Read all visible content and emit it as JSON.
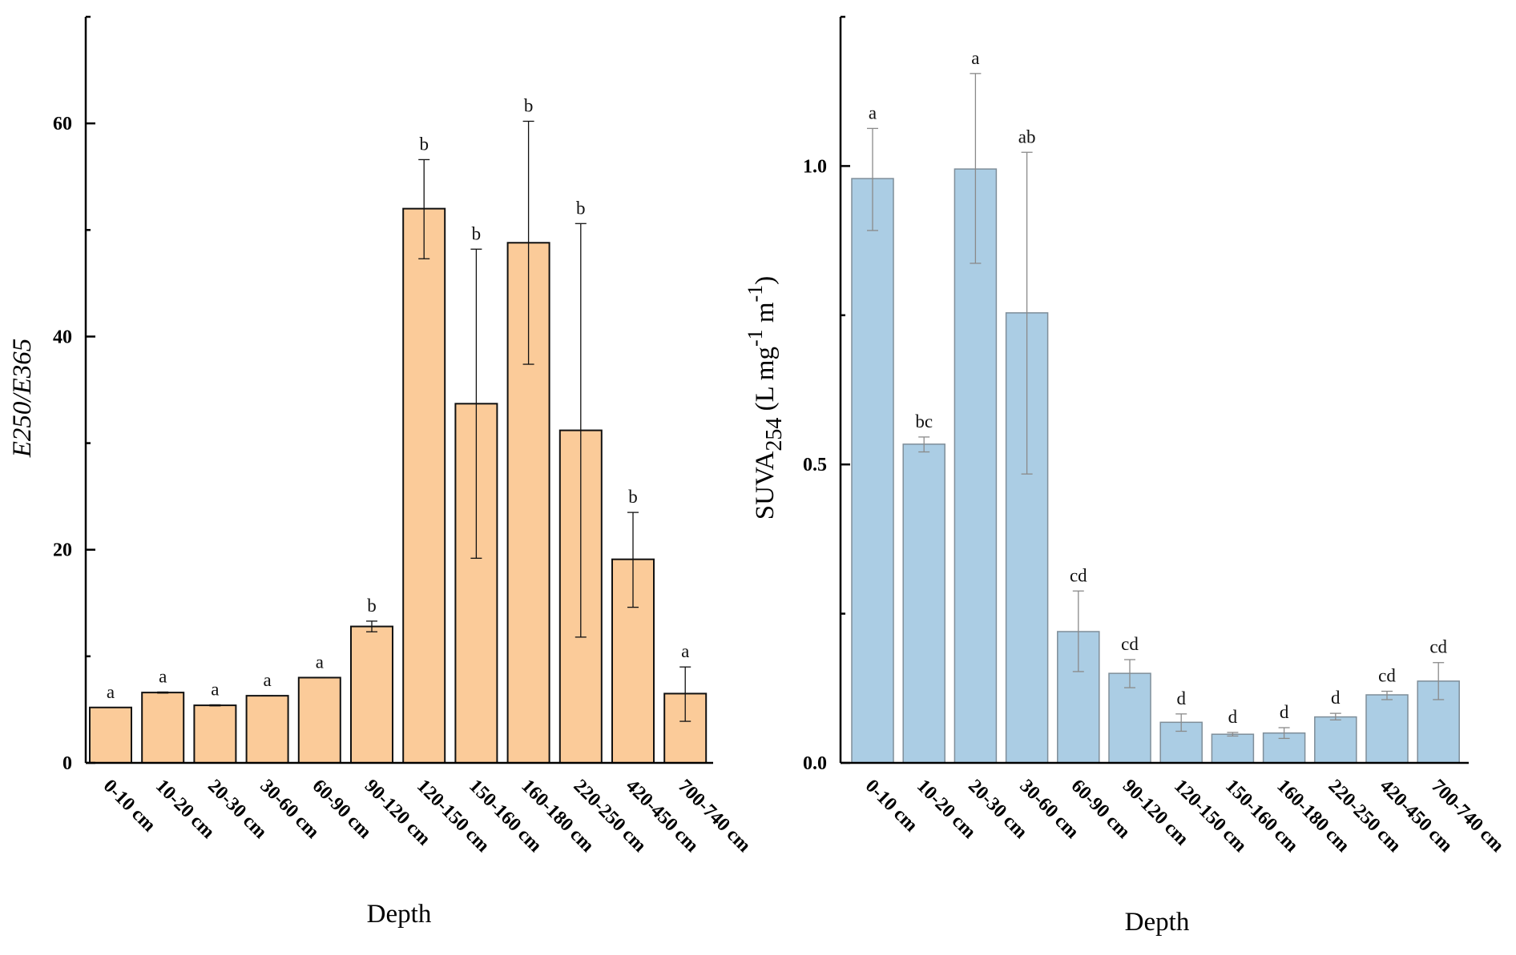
{
  "chart_data": [
    {
      "type": "bar",
      "id": "left",
      "title": "",
      "xlabel": "Depth",
      "ylabel": "E250/E365",
      "ylim": [
        0,
        70
      ],
      "yticks_major": [
        0,
        20,
        40,
        60
      ],
      "yticks_minor": [
        10,
        30,
        50
      ],
      "ytick_labels": [
        "0",
        "20",
        "40",
        "60"
      ],
      "grid": false,
      "legend": "none",
      "bar_color": "#fbcb99",
      "bar_edge": "#111111",
      "categories": [
        "0-10 cm",
        "10-20 cm",
        "20-30 cm",
        "30-60 cm",
        "60-90 cm",
        "90-120 cm",
        "120-150 cm",
        "150-160 cm",
        "160-180 cm",
        "220-250 cm",
        "420-450 cm",
        "700-740 cm"
      ],
      "values": [
        5.2,
        6.6,
        5.4,
        6.3,
        8.0,
        12.8,
        52.0,
        33.7,
        48.8,
        31.2,
        19.1,
        6.5
      ],
      "error_upper": [
        5.2,
        6.65,
        5.45,
        6.3,
        8.0,
        13.3,
        56.6,
        48.2,
        60.2,
        50.6,
        23.5,
        9.0
      ],
      "error_lower": [
        5.2,
        6.55,
        5.35,
        6.3,
        8.0,
        12.3,
        47.3,
        19.2,
        37.4,
        11.8,
        14.6,
        3.9
      ],
      "significance": [
        "a",
        "a",
        "a",
        "a",
        "a",
        "b",
        "b",
        "b",
        "b",
        "b",
        "b",
        "a"
      ]
    },
    {
      "type": "bar",
      "id": "right",
      "title": "",
      "xlabel": "Depth",
      "ylabel": "SUVA254 (L mg-1 m-1)",
      "ylabel_parts": {
        "main": "SUVA",
        "sub": "254",
        "unit_a": " (L mg",
        "sup_a": "-1",
        "unit_b": " m",
        "sup_b": "-1",
        "close": ")"
      },
      "ylim": [
        0,
        1.25
      ],
      "yticks_major": [
        0.0,
        0.5,
        1.0
      ],
      "yticks_minor": [
        0.25,
        0.75
      ],
      "ytick_labels": [
        "0.0",
        "0.5",
        "1.0"
      ],
      "grid": false,
      "legend": "none",
      "bar_color": "#abcde4",
      "bar_edge": "#7f8e99",
      "categories": [
        "0-10 cm",
        "10-20 cm",
        "20-30 cm",
        "30-60 cm",
        "60-90 cm",
        "90-120 cm",
        "120-150 cm",
        "150-160 cm",
        "160-180 cm",
        "220-250 cm",
        "420-450 cm",
        "700-740 cm"
      ],
      "values": [
        0.979,
        0.534,
        0.995,
        0.754,
        0.22,
        0.15,
        0.068,
        0.048,
        0.05,
        0.077,
        0.114,
        0.137
      ],
      "error_upper": [
        1.063,
        0.546,
        1.155,
        1.023,
        0.288,
        0.173,
        0.082,
        0.051,
        0.059,
        0.083,
        0.12,
        0.168
      ],
      "error_lower": [
        0.892,
        0.521,
        0.837,
        0.484,
        0.153,
        0.126,
        0.053,
        0.045,
        0.041,
        0.072,
        0.106,
        0.106
      ],
      "significance": [
        "a",
        "bc",
        "a",
        "ab",
        "cd",
        "cd",
        "d",
        "d",
        "d",
        "d",
        "cd",
        "cd"
      ]
    }
  ]
}
